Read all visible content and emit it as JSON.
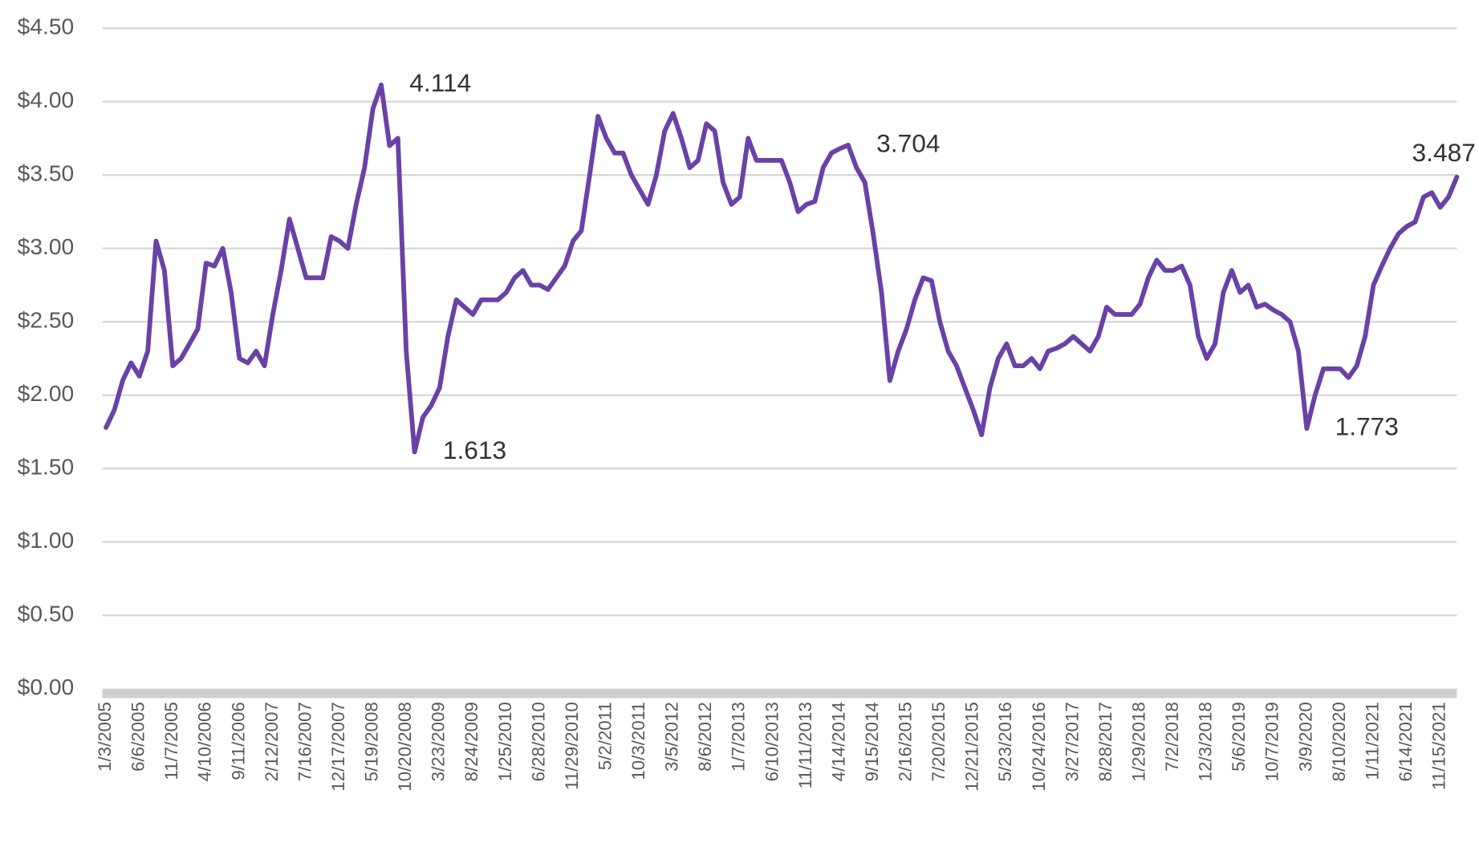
{
  "chart_data": {
    "type": "line",
    "categories": [
      "1/3/2005",
      null,
      null,
      null,
      "6/6/2005",
      null,
      null,
      null,
      "11/7/2005",
      null,
      null,
      null,
      "4/10/2006",
      null,
      null,
      null,
      "9/11/2006",
      null,
      null,
      null,
      "2/12/2007",
      null,
      null,
      null,
      "7/16/2007",
      null,
      null,
      null,
      "12/17/2007",
      null,
      null,
      null,
      "5/19/2008",
      null,
      null,
      null,
      "10/20/2008",
      null,
      null,
      null,
      "3/23/2009",
      null,
      null,
      null,
      "8/24/2009",
      null,
      null,
      null,
      "1/25/2010",
      null,
      null,
      null,
      "6/28/2010",
      null,
      null,
      null,
      "11/29/2010",
      null,
      null,
      null,
      "5/2/2011",
      null,
      null,
      null,
      "10/3/2011",
      null,
      null,
      null,
      "3/5/2012",
      null,
      null,
      null,
      "8/6/2012",
      null,
      null,
      null,
      "1/7/2013",
      null,
      null,
      null,
      "6/10/2013",
      null,
      null,
      null,
      "11/11/2013",
      null,
      null,
      null,
      "4/14/2014",
      null,
      null,
      null,
      "9/15/2014",
      null,
      null,
      null,
      "2/16/2015",
      null,
      null,
      null,
      "7/20/2015",
      null,
      null,
      null,
      "12/21/2015",
      null,
      null,
      null,
      "5/23/2016",
      null,
      null,
      null,
      "10/24/2016",
      null,
      null,
      null,
      "3/27/2017",
      null,
      null,
      null,
      "8/28/2017",
      null,
      null,
      null,
      "1/29/2018",
      null,
      null,
      null,
      "7/2/2018",
      null,
      null,
      null,
      "12/3/2018",
      null,
      null,
      null,
      "5/6/2019",
      null,
      null,
      null,
      "10/7/2019",
      null,
      null,
      null,
      "3/9/2020",
      null,
      null,
      null,
      "8/10/2020",
      null,
      null,
      null,
      "1/11/2021",
      null,
      null,
      null,
      "6/14/2021",
      null,
      null,
      null,
      "11/15/2021",
      null,
      null
    ],
    "values": [
      1.78,
      1.9,
      2.1,
      2.22,
      2.13,
      2.3,
      3.05,
      2.85,
      2.2,
      2.25,
      2.35,
      2.45,
      2.9,
      2.88,
      3.0,
      2.7,
      2.25,
      2.22,
      2.3,
      2.2,
      2.55,
      2.85,
      3.2,
      3.0,
      2.8,
      2.8,
      2.8,
      3.08,
      3.05,
      3.0,
      3.3,
      3.55,
      3.95,
      4.114,
      3.7,
      3.75,
      2.3,
      1.613,
      1.85,
      1.93,
      2.05,
      2.4,
      2.65,
      2.6,
      2.55,
      2.65,
      2.65,
      2.65,
      2.7,
      2.8,
      2.85,
      2.75,
      2.75,
      2.72,
      2.8,
      2.88,
      3.05,
      3.12,
      3.5,
      3.9,
      3.75,
      3.65,
      3.65,
      3.5,
      3.4,
      3.3,
      3.5,
      3.8,
      3.92,
      3.75,
      3.55,
      3.6,
      3.85,
      3.8,
      3.45,
      3.3,
      3.35,
      3.75,
      3.6,
      3.6,
      3.6,
      3.6,
      3.45,
      3.25,
      3.3,
      3.32,
      3.55,
      3.65,
      3.68,
      3.704,
      3.55,
      3.45,
      3.1,
      2.7,
      2.1,
      2.3,
      2.45,
      2.65,
      2.8,
      2.78,
      2.5,
      2.3,
      2.2,
      2.05,
      1.9,
      1.73,
      2.05,
      2.25,
      2.35,
      2.2,
      2.2,
      2.25,
      2.18,
      2.3,
      2.32,
      2.35,
      2.4,
      2.35,
      2.3,
      2.4,
      2.6,
      2.55,
      2.55,
      2.55,
      2.62,
      2.8,
      2.92,
      2.85,
      2.85,
      2.88,
      2.75,
      2.4,
      2.25,
      2.35,
      2.7,
      2.85,
      2.7,
      2.75,
      2.6,
      2.62,
      2.58,
      2.55,
      2.5,
      2.3,
      1.773,
      2.0,
      2.18,
      2.18,
      2.18,
      2.12,
      2.2,
      2.4,
      2.75,
      2.88,
      3.0,
      3.1,
      3.15,
      3.18,
      3.35,
      3.38,
      3.28,
      3.35,
      3.487
    ],
    "value_labels": [
      null,
      null,
      null,
      null,
      null,
      null,
      null,
      null,
      null,
      null,
      null,
      null,
      null,
      null,
      null,
      null,
      null,
      null,
      null,
      null,
      null,
      null,
      null,
      null,
      null,
      null,
      null,
      null,
      null,
      null,
      null,
      null,
      null,
      "4.114",
      null,
      null,
      null,
      "1.613",
      null,
      null,
      null,
      null,
      null,
      null,
      null,
      null,
      null,
      null,
      null,
      null,
      null,
      null,
      null,
      null,
      null,
      null,
      null,
      null,
      null,
      null,
      null,
      null,
      null,
      null,
      null,
      null,
      null,
      null,
      null,
      null,
      null,
      null,
      null,
      null,
      null,
      null,
      null,
      null,
      null,
      null,
      null,
      null,
      null,
      null,
      null,
      null,
      null,
      null,
      null,
      "3.704",
      null,
      null,
      null,
      null,
      null,
      null,
      null,
      null,
      null,
      null,
      null,
      null,
      null,
      null,
      null,
      null,
      null,
      null,
      null,
      null,
      null,
      null,
      null,
      null,
      null,
      null,
      null,
      null,
      null,
      null,
      null,
      null,
      null,
      null,
      null,
      null,
      null,
      null,
      null,
      null,
      null,
      null,
      null,
      null,
      null,
      null,
      null,
      null,
      null,
      null,
      null,
      null,
      null,
      null,
      "1.773",
      null,
      null,
      null,
      null,
      null,
      null,
      null,
      null,
      null,
      null,
      null,
      null,
      null,
      null,
      null,
      null,
      null,
      "3.487"
    ],
    "color": "#6a42a6",
    "ylim": [
      0,
      4.5
    ],
    "yticks": [
      {
        "value": 0,
        "label": "$0.00"
      },
      {
        "value": 0.5,
        "label": "$0.50"
      },
      {
        "value": 1,
        "label": "$1.00"
      },
      {
        "value": 1.5,
        "label": "$1.50"
      },
      {
        "value": 2,
        "label": "$2.00"
      },
      {
        "value": 2.5,
        "label": "$2.50"
      },
      {
        "value": 3,
        "label": "$3.00"
      },
      {
        "value": 3.5,
        "label": "$3.50"
      },
      {
        "value": 4,
        "label": "$4.00"
      },
      {
        "value": 4.5,
        "label": "$4.50"
      }
    ],
    "grid": true
  }
}
